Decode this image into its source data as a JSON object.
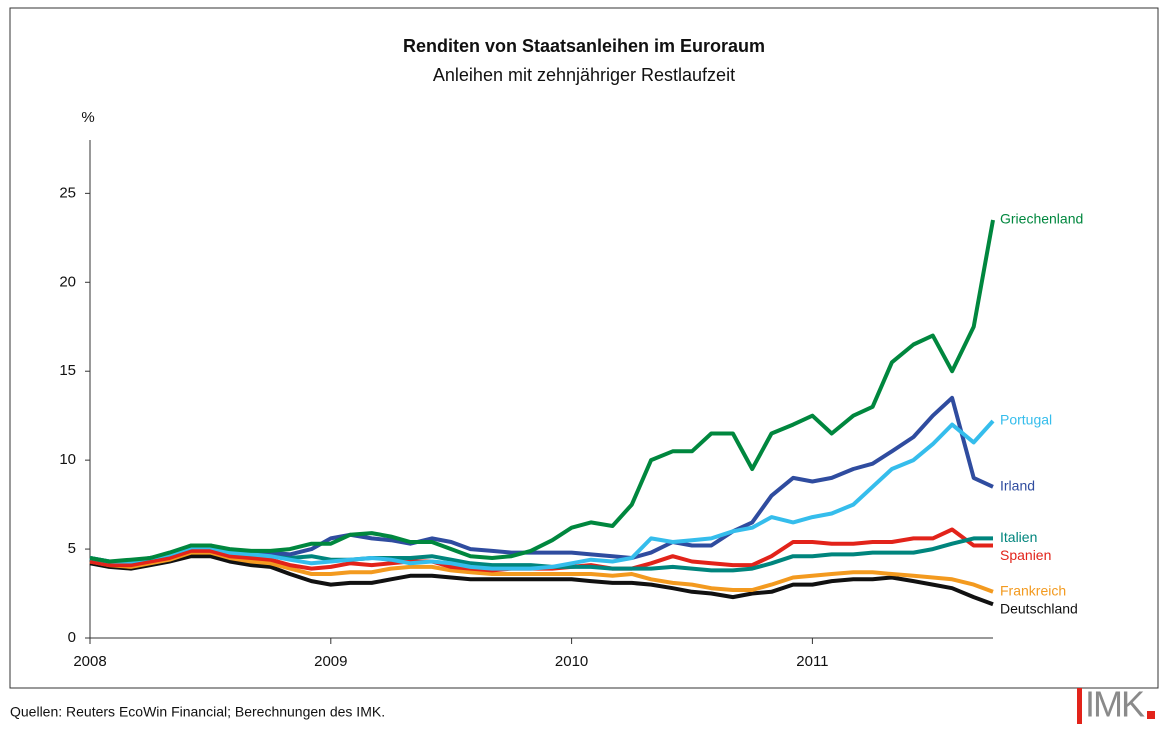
{
  "chart_data": {
    "type": "line",
    "title": "Renditen von Staatsanleihen im Euroraum",
    "subtitle": "Anleihen mit zehnjähriger Restlaufzeit",
    "y_label": "%",
    "source": "Quellen: Reuters EcoWin Financial; Berechnungen des IMK.",
    "logo": "IMK",
    "x": [
      2008,
      2008.08,
      2008.17,
      2008.25,
      2008.33,
      2008.42,
      2008.5,
      2008.58,
      2008.67,
      2008.75,
      2008.83,
      2008.92,
      2009,
      2009.08,
      2009.17,
      2009.25,
      2009.33,
      2009.42,
      2009.5,
      2009.58,
      2009.67,
      2009.75,
      2009.83,
      2009.92,
      2010,
      2010.08,
      2010.17,
      2010.25,
      2010.33,
      2010.42,
      2010.5,
      2010.58,
      2010.67,
      2010.75,
      2010.83,
      2010.92,
      2011,
      2011.08,
      2011.17,
      2011.25,
      2011.33,
      2011.42,
      2011.5,
      2011.58,
      2011.67,
      2011.75
    ],
    "xlim": [
      2008,
      2011.75
    ],
    "xticks": [
      2008,
      2009,
      2010,
      2011
    ],
    "ylim": [
      0,
      28
    ],
    "yticks": [
      0,
      5,
      10,
      15,
      20,
      25
    ],
    "series": [
      {
        "name": "Deutschland",
        "color": "#111111",
        "values": [
          4.2,
          4.0,
          3.9,
          4.1,
          4.3,
          4.6,
          4.6,
          4.3,
          4.1,
          4.0,
          3.6,
          3.2,
          3.0,
          3.1,
          3.1,
          3.3,
          3.5,
          3.5,
          3.4,
          3.3,
          3.3,
          3.3,
          3.3,
          3.3,
          3.3,
          3.2,
          3.1,
          3.1,
          3.0,
          2.8,
          2.6,
          2.5,
          2.3,
          2.5,
          2.6,
          3.0,
          3.0,
          3.2,
          3.3,
          3.3,
          3.4,
          3.2,
          3.0,
          2.8,
          2.3,
          1.9
        ]
      },
      {
        "name": "Frankreich",
        "color": "#f39a1f",
        "values": [
          4.3,
          4.1,
          4.0,
          4.2,
          4.4,
          4.8,
          4.8,
          4.5,
          4.3,
          4.2,
          3.9,
          3.6,
          3.6,
          3.7,
          3.7,
          3.9,
          4.0,
          4.0,
          3.8,
          3.7,
          3.6,
          3.6,
          3.6,
          3.6,
          3.6,
          3.6,
          3.5,
          3.6,
          3.3,
          3.1,
          3.0,
          2.8,
          2.7,
          2.7,
          3.0,
          3.4,
          3.5,
          3.6,
          3.7,
          3.7,
          3.6,
          3.5,
          3.4,
          3.3,
          3.0,
          2.6
        ]
      },
      {
        "name": "Spanien",
        "color": "#e2231a",
        "values": [
          4.3,
          4.1,
          4.1,
          4.3,
          4.5,
          4.9,
          4.9,
          4.6,
          4.5,
          4.4,
          4.1,
          3.9,
          4.0,
          4.2,
          4.1,
          4.2,
          4.3,
          4.3,
          4.0,
          3.9,
          3.8,
          3.9,
          3.9,
          3.9,
          4.0,
          4.1,
          3.9,
          3.9,
          4.2,
          4.6,
          4.3,
          4.2,
          4.1,
          4.1,
          4.6,
          5.4,
          5.4,
          5.3,
          5.3,
          5.4,
          5.4,
          5.6,
          5.6,
          6.1,
          5.2,
          5.2
        ]
      },
      {
        "name": "Italien",
        "color": "#00857d",
        "values": [
          4.5,
          4.3,
          4.3,
          4.5,
          4.7,
          5.1,
          5.2,
          4.9,
          4.8,
          4.7,
          4.5,
          4.6,
          4.4,
          4.4,
          4.5,
          4.5,
          4.5,
          4.6,
          4.4,
          4.2,
          4.1,
          4.1,
          4.1,
          4.0,
          4.0,
          4.0,
          3.9,
          3.9,
          3.9,
          4.0,
          3.9,
          3.8,
          3.8,
          3.9,
          4.2,
          4.6,
          4.6,
          4.7,
          4.7,
          4.8,
          4.8,
          4.8,
          5.0,
          5.3,
          5.6,
          5.6
        ]
      },
      {
        "name": "Irland",
        "color": "#2f4c9f",
        "values": [
          4.5,
          4.3,
          4.3,
          4.5,
          4.7,
          5.2,
          5.2,
          4.9,
          4.7,
          4.8,
          4.7,
          5.0,
          5.6,
          5.8,
          5.6,
          5.5,
          5.3,
          5.6,
          5.4,
          5.0,
          4.9,
          4.8,
          4.8,
          4.8,
          4.8,
          4.7,
          4.6,
          4.5,
          4.8,
          5.4,
          5.2,
          5.2,
          6.0,
          6.5,
          8.0,
          9.0,
          8.8,
          9.0,
          9.5,
          9.8,
          10.5,
          11.3,
          12.5,
          13.5,
          9.0,
          8.5
        ]
      },
      {
        "name": "Portugal",
        "color": "#35bdec",
        "values": [
          4.5,
          4.3,
          4.3,
          4.5,
          4.7,
          5.1,
          5.1,
          4.8,
          4.7,
          4.6,
          4.4,
          4.2,
          4.3,
          4.4,
          4.5,
          4.4,
          4.2,
          4.3,
          4.2,
          4.0,
          3.9,
          3.9,
          3.9,
          4.0,
          4.2,
          4.4,
          4.3,
          4.5,
          5.6,
          5.4,
          5.5,
          5.6,
          6.0,
          6.2,
          6.8,
          6.5,
          6.8,
          7.0,
          7.5,
          8.5,
          9.5,
          10.0,
          10.9,
          12.0,
          11.0,
          12.2
        ]
      },
      {
        "name": "Griechenland",
        "color": "#00873e",
        "values": [
          4.5,
          4.3,
          4.4,
          4.5,
          4.8,
          5.2,
          5.2,
          5.0,
          4.9,
          4.9,
          5.0,
          5.3,
          5.3,
          5.8,
          5.9,
          5.7,
          5.4,
          5.4,
          5.0,
          4.6,
          4.5,
          4.6,
          4.9,
          5.5,
          6.2,
          6.5,
          6.3,
          7.5,
          10.0,
          10.5,
          10.5,
          11.5,
          11.5,
          9.5,
          11.5,
          12.0,
          12.5,
          11.5,
          12.5,
          13.0,
          15.5,
          16.5,
          17.0,
          15.0,
          17.5,
          23.5
        ]
      }
    ]
  }
}
